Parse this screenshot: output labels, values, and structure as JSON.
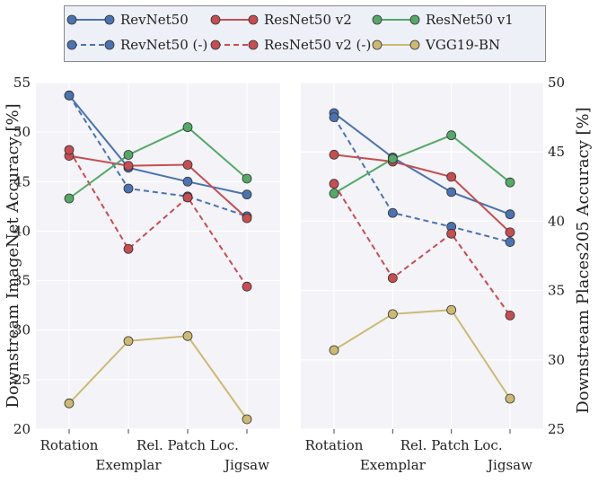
{
  "chart_data": {
    "type": "line",
    "categories": [
      "Rotation",
      "Exemplar",
      "Rel. Patch Loc.",
      "Jigsaw"
    ],
    "legend": {
      "placement": "top",
      "columns": 3
    },
    "series_styles": [
      {
        "key": "revnet50",
        "name": "RevNet50",
        "color": "#4c72b0",
        "dashed": false
      },
      {
        "key": "revnet50_minus",
        "name": "RevNet50 (-)",
        "color": "#4c72b0",
        "dashed": true
      },
      {
        "key": "resnet50v2",
        "name": "ResNet50 v2",
        "color": "#c44e52",
        "dashed": false
      },
      {
        "key": "resnet50v2_minus",
        "name": "ResNet50 v2 (-)",
        "color": "#c44e52",
        "dashed": true
      },
      {
        "key": "resnet50v1",
        "name": "ResNet50 v1",
        "color": "#55a868",
        "dashed": false
      },
      {
        "key": "vgg19bn",
        "name": "VGG19-BN",
        "color": "#ccb974",
        "dashed": false
      }
    ],
    "panels": [
      {
        "ylabel": "Downstream ImageNet Accuracy [%]",
        "ylim": [
          20,
          55
        ],
        "yticks": [
          20,
          25,
          30,
          35,
          40,
          45,
          50,
          55
        ],
        "yaxis_side": "left",
        "series": {
          "revnet50": [
            53.7,
            46.4,
            45.0,
            43.7
          ],
          "revnet50_minus": [
            53.7,
            44.3,
            43.5,
            41.5
          ],
          "resnet50v2": [
            47.6,
            46.6,
            46.7,
            41.3
          ],
          "resnet50v2_minus": [
            48.2,
            38.2,
            43.4,
            34.4
          ],
          "resnet50v1": [
            43.3,
            47.7,
            50.5,
            45.3
          ],
          "vgg19bn": [
            22.6,
            28.9,
            29.4,
            21.0
          ]
        }
      },
      {
        "ylabel": "Downstream Places205 Accuracy [%]",
        "ylim": [
          25,
          50
        ],
        "yticks": [
          25,
          30,
          35,
          40,
          45,
          50
        ],
        "yaxis_side": "right",
        "series": {
          "revnet50": [
            47.8,
            44.6,
            42.1,
            40.5
          ],
          "revnet50_minus": [
            47.5,
            40.6,
            39.6,
            38.5
          ],
          "resnet50v2": [
            44.8,
            44.3,
            43.2,
            39.2
          ],
          "resnet50v2_minus": [
            42.7,
            35.9,
            39.1,
            33.2
          ],
          "resnet50v1": [
            42.0,
            44.5,
            46.2,
            42.8
          ],
          "vgg19bn": [
            30.7,
            33.3,
            33.6,
            27.2
          ]
        }
      }
    ]
  }
}
